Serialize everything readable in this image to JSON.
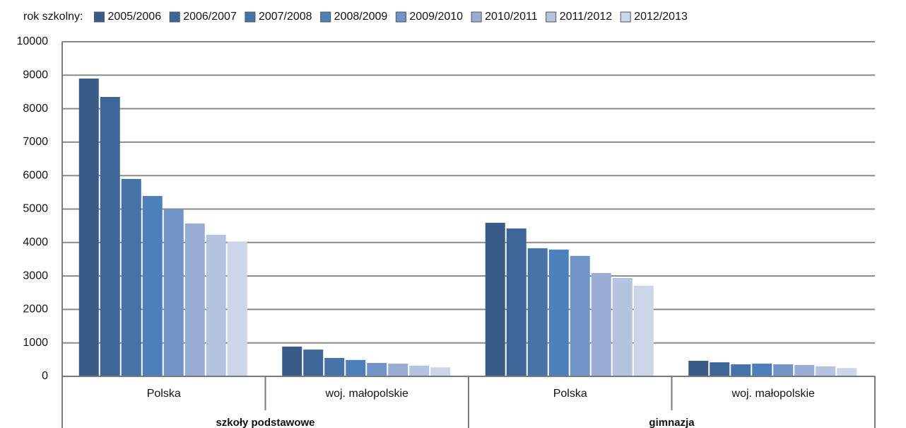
{
  "chart_data": {
    "type": "bar",
    "legend_title": "rok szkolny:",
    "categories": [
      "Polska",
      "woj. małopolskie",
      "Polska",
      "woj. małopolskie"
    ],
    "category_groups": [
      "szkoły podstawowe",
      "gimnazja"
    ],
    "series": [
      {
        "name": "2005/2006",
        "color": "#3a5a87",
        "values": [
          8900,
          890,
          4590,
          465
        ]
      },
      {
        "name": "2006/2007",
        "color": "#3e6598",
        "values": [
          8350,
          800,
          4420,
          420
        ]
      },
      {
        "name": "2007/2008",
        "color": "#4572a9",
        "values": [
          5900,
          550,
          3830,
          360
        ]
      },
      {
        "name": "2008/2009",
        "color": "#4d80bb",
        "values": [
          5390,
          490,
          3790,
          380
        ]
      },
      {
        "name": "2009/2010",
        "color": "#7093c8",
        "values": [
          4990,
          400,
          3600,
          360
        ]
      },
      {
        "name": "2010/2011",
        "color": "#98acd4",
        "values": [
          4570,
          380,
          3090,
          340
        ]
      },
      {
        "name": "2011/2012",
        "color": "#b4c3df",
        "values": [
          4230,
          320,
          2940,
          300
        ]
      },
      {
        "name": "2012/2013",
        "color": "#cdd6e8",
        "values": [
          4020,
          270,
          2710,
          250
        ]
      }
    ],
    "ylim": [
      0,
      10000
    ],
    "yticks": [
      0,
      1000,
      2000,
      3000,
      4000,
      5000,
      6000,
      7000,
      8000,
      9000,
      10000
    ],
    "grid": true,
    "legend": "top"
  }
}
